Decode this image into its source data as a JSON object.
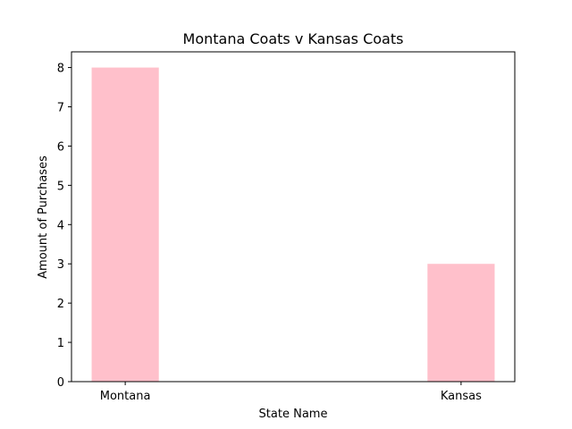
{
  "chart_data": {
    "type": "bar",
    "title": "Montana Coats v Kansas Coats",
    "xlabel": "State Name",
    "ylabel": "Amount of Purchases",
    "categories": [
      "Montana",
      "Kansas"
    ],
    "values": [
      8,
      3
    ],
    "ylim": [
      0,
      8.4
    ],
    "yticks": [
      0,
      1,
      2,
      3,
      4,
      5,
      6,
      7,
      8
    ],
    "bar_color": "#ffc0cb",
    "grid": false,
    "legend": "none"
  }
}
